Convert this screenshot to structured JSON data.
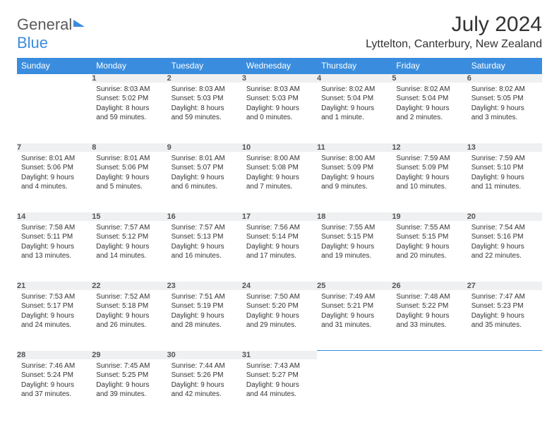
{
  "logo": {
    "text1": "General",
    "text2": "Blue"
  },
  "title": {
    "month": "July 2024",
    "location": "Lyttelton, Canterbury, New Zealand"
  },
  "colors": {
    "header_bg": "#3a8dde",
    "header_text": "#ffffff",
    "daynum_bg": "#eef0f1",
    "daynum_border": "#3a8dde",
    "body_text": "#333333",
    "logo_gray": "#5a5a5a",
    "logo_blue": "#3a8dde"
  },
  "weekdays": [
    "Sunday",
    "Monday",
    "Tuesday",
    "Wednesday",
    "Thursday",
    "Friday",
    "Saturday"
  ],
  "start_offset": 1,
  "days": [
    {
      "n": 1,
      "sunrise": "8:03 AM",
      "sunset": "5:02 PM",
      "daylight": "8 hours and 59 minutes."
    },
    {
      "n": 2,
      "sunrise": "8:03 AM",
      "sunset": "5:03 PM",
      "daylight": "8 hours and 59 minutes."
    },
    {
      "n": 3,
      "sunrise": "8:03 AM",
      "sunset": "5:03 PM",
      "daylight": "9 hours and 0 minutes."
    },
    {
      "n": 4,
      "sunrise": "8:02 AM",
      "sunset": "5:04 PM",
      "daylight": "9 hours and 1 minute."
    },
    {
      "n": 5,
      "sunrise": "8:02 AM",
      "sunset": "5:04 PM",
      "daylight": "9 hours and 2 minutes."
    },
    {
      "n": 6,
      "sunrise": "8:02 AM",
      "sunset": "5:05 PM",
      "daylight": "9 hours and 3 minutes."
    },
    {
      "n": 7,
      "sunrise": "8:01 AM",
      "sunset": "5:06 PM",
      "daylight": "9 hours and 4 minutes."
    },
    {
      "n": 8,
      "sunrise": "8:01 AM",
      "sunset": "5:06 PM",
      "daylight": "9 hours and 5 minutes."
    },
    {
      "n": 9,
      "sunrise": "8:01 AM",
      "sunset": "5:07 PM",
      "daylight": "9 hours and 6 minutes."
    },
    {
      "n": 10,
      "sunrise": "8:00 AM",
      "sunset": "5:08 PM",
      "daylight": "9 hours and 7 minutes."
    },
    {
      "n": 11,
      "sunrise": "8:00 AM",
      "sunset": "5:09 PM",
      "daylight": "9 hours and 9 minutes."
    },
    {
      "n": 12,
      "sunrise": "7:59 AM",
      "sunset": "5:09 PM",
      "daylight": "9 hours and 10 minutes."
    },
    {
      "n": 13,
      "sunrise": "7:59 AM",
      "sunset": "5:10 PM",
      "daylight": "9 hours and 11 minutes."
    },
    {
      "n": 14,
      "sunrise": "7:58 AM",
      "sunset": "5:11 PM",
      "daylight": "9 hours and 13 minutes."
    },
    {
      "n": 15,
      "sunrise": "7:57 AM",
      "sunset": "5:12 PM",
      "daylight": "9 hours and 14 minutes."
    },
    {
      "n": 16,
      "sunrise": "7:57 AM",
      "sunset": "5:13 PM",
      "daylight": "9 hours and 16 minutes."
    },
    {
      "n": 17,
      "sunrise": "7:56 AM",
      "sunset": "5:14 PM",
      "daylight": "9 hours and 17 minutes."
    },
    {
      "n": 18,
      "sunrise": "7:55 AM",
      "sunset": "5:15 PM",
      "daylight": "9 hours and 19 minutes."
    },
    {
      "n": 19,
      "sunrise": "7:55 AM",
      "sunset": "5:15 PM",
      "daylight": "9 hours and 20 minutes."
    },
    {
      "n": 20,
      "sunrise": "7:54 AM",
      "sunset": "5:16 PM",
      "daylight": "9 hours and 22 minutes."
    },
    {
      "n": 21,
      "sunrise": "7:53 AM",
      "sunset": "5:17 PM",
      "daylight": "9 hours and 24 minutes."
    },
    {
      "n": 22,
      "sunrise": "7:52 AM",
      "sunset": "5:18 PM",
      "daylight": "9 hours and 26 minutes."
    },
    {
      "n": 23,
      "sunrise": "7:51 AM",
      "sunset": "5:19 PM",
      "daylight": "9 hours and 28 minutes."
    },
    {
      "n": 24,
      "sunrise": "7:50 AM",
      "sunset": "5:20 PM",
      "daylight": "9 hours and 29 minutes."
    },
    {
      "n": 25,
      "sunrise": "7:49 AM",
      "sunset": "5:21 PM",
      "daylight": "9 hours and 31 minutes."
    },
    {
      "n": 26,
      "sunrise": "7:48 AM",
      "sunset": "5:22 PM",
      "daylight": "9 hours and 33 minutes."
    },
    {
      "n": 27,
      "sunrise": "7:47 AM",
      "sunset": "5:23 PM",
      "daylight": "9 hours and 35 minutes."
    },
    {
      "n": 28,
      "sunrise": "7:46 AM",
      "sunset": "5:24 PM",
      "daylight": "9 hours and 37 minutes."
    },
    {
      "n": 29,
      "sunrise": "7:45 AM",
      "sunset": "5:25 PM",
      "daylight": "9 hours and 39 minutes."
    },
    {
      "n": 30,
      "sunrise": "7:44 AM",
      "sunset": "5:26 PM",
      "daylight": "9 hours and 42 minutes."
    },
    {
      "n": 31,
      "sunrise": "7:43 AM",
      "sunset": "5:27 PM",
      "daylight": "9 hours and 44 minutes."
    }
  ],
  "labels": {
    "sunrise": "Sunrise:",
    "sunset": "Sunset:",
    "daylight": "Daylight:"
  }
}
